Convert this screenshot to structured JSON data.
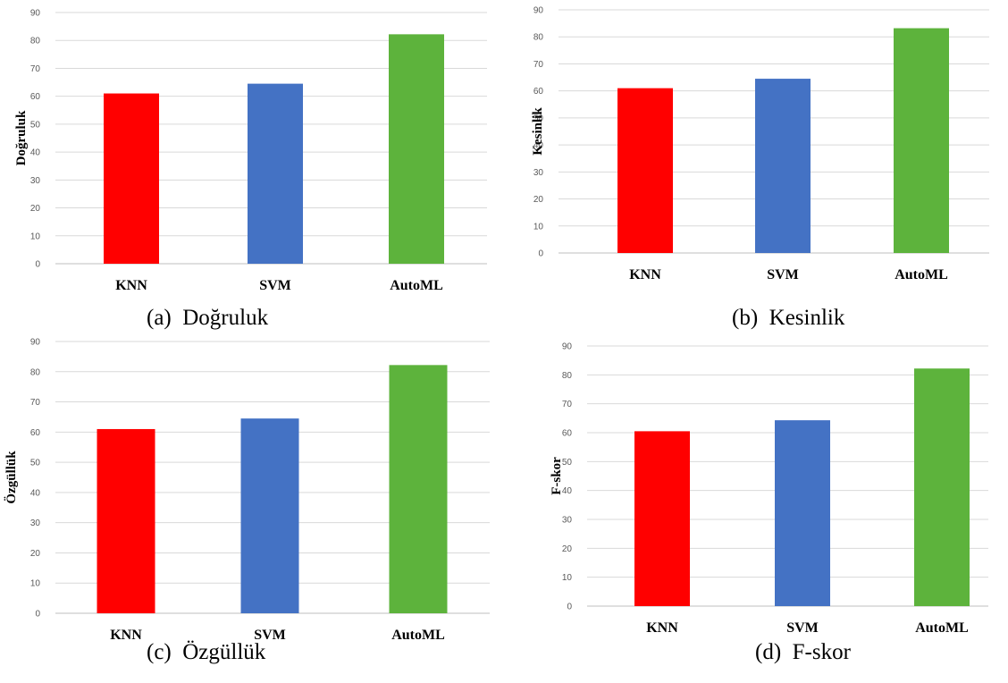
{
  "colors": {
    "KNN": "#ff0000",
    "SVM": "#4472c4",
    "AutoML": "#5db33c",
    "grid": "#d9d9d9",
    "axis": "#bfbfbf"
  },
  "chart_data": [
    {
      "type": "bar",
      "caption": "(a)  Doğruluk",
      "ylabel": "Doğruluk",
      "categories": [
        "KNN",
        "SVM",
        "AutoML"
      ],
      "values": [
        61,
        64.5,
        82.2
      ],
      "ylim": [
        0,
        90
      ],
      "yticks": [
        0,
        10,
        20,
        30,
        40,
        50,
        60,
        70,
        80,
        90
      ],
      "grid": true
    },
    {
      "type": "bar",
      "caption": "(b)  Kesinlik",
      "ylabel": "Kesinlik",
      "categories": [
        "KNN",
        "SVM",
        "AutoML"
      ],
      "values": [
        61,
        64.5,
        83.2
      ],
      "ylim": [
        0,
        90
      ],
      "yticks": [
        0,
        10,
        20,
        30,
        40,
        50,
        60,
        70,
        80,
        90
      ],
      "grid": true
    },
    {
      "type": "bar",
      "caption": "(c)  Özgüllük",
      "ylabel": "Özgüllük",
      "categories": [
        "KNN",
        "SVM",
        "AutoML"
      ],
      "values": [
        61,
        64.5,
        82.2
      ],
      "ylim": [
        0,
        90
      ],
      "yticks": [
        0,
        10,
        20,
        30,
        40,
        50,
        60,
        70,
        80,
        90
      ],
      "grid": true
    },
    {
      "type": "bar",
      "caption": "(d)  F-skor",
      "ylabel": "F-skor",
      "categories": [
        "KNN",
        "SVM",
        "AutoML"
      ],
      "values": [
        60.5,
        64.3,
        82.2
      ],
      "ylim": [
        0,
        90
      ],
      "yticks": [
        0,
        10,
        20,
        30,
        40,
        50,
        60,
        70,
        80,
        90
      ],
      "grid": true
    }
  ]
}
